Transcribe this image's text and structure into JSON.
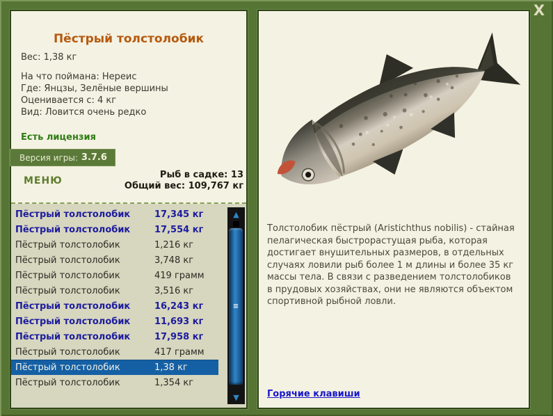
{
  "window": {
    "close_label": "X"
  },
  "fish_card": {
    "title": "Пёстрый толстолобик",
    "weight_line": "Вес: 1,38 кг",
    "bait_line": "На что поймана: Нереис",
    "place_line": "Где: Янцзы, Зелёные вершины",
    "valued_line": "Оценивается с: 4 кг",
    "rarity_line": "Вид: Ловится очень редко",
    "license_label": "Есть лицензия",
    "version_label": "Версия игры:",
    "version_value": "3.7.6"
  },
  "menu": {
    "label": "МЕНЮ"
  },
  "cage": {
    "count_line": "Рыб в садке: 13",
    "total_line": "Общий вес: 109,767 кг",
    "fish": [
      {
        "name": "Пёстрый толстолобик",
        "weight": "17,345 кг",
        "bold": true,
        "selected": false
      },
      {
        "name": "Пёстрый толстолобик",
        "weight": "17,554 кг",
        "bold": true,
        "selected": false
      },
      {
        "name": "Пёстрый толстолобик",
        "weight": "1,216 кг",
        "bold": false,
        "selected": false
      },
      {
        "name": "Пёстрый толстолобик",
        "weight": "3,748 кг",
        "bold": false,
        "selected": false
      },
      {
        "name": "Пёстрый толстолобик",
        "weight": "419 грамм",
        "bold": false,
        "selected": false
      },
      {
        "name": "Пёстрый толстолобик",
        "weight": "3,516 кг",
        "bold": false,
        "selected": false
      },
      {
        "name": "Пёстрый толстолобик",
        "weight": "16,243 кг",
        "bold": true,
        "selected": false
      },
      {
        "name": "Пёстрый толстолобик",
        "weight": "11,693 кг",
        "bold": true,
        "selected": false
      },
      {
        "name": "Пёстрый толстолобик",
        "weight": "17,958 кг",
        "bold": true,
        "selected": false
      },
      {
        "name": "Пёстрый толстолобик",
        "weight": "417 грамм",
        "bold": false,
        "selected": false
      },
      {
        "name": "Пёстрый толстолобик",
        "weight": "1,38 кг",
        "bold": false,
        "selected": true
      },
      {
        "name": "Пёстрый толстолобик",
        "weight": "1,354 кг",
        "bold": false,
        "selected": false
      }
    ]
  },
  "details": {
    "description": "Толстолобик пёстрый (Aristichthus nobilis) - стайная пелагическая быстрорастущая рыба, которая достигает внушительных размеров, в отдельных случаях ловили рыб более 1 м длины и более 35 кг массы тела. В связи с разведением толстолобиков в прудовых хозяйствах, они не являются объектом спортивной рыбной ловли.",
    "hotkeys_link": "Горячие клавиши"
  },
  "icons": {
    "scroll_up": "▲",
    "scroll_down": "▼",
    "grip": "≡"
  },
  "colors": {
    "frame_green": "#567434",
    "panel_cream": "#f4f2e2",
    "list_beige": "#d7d6bf",
    "title_orange": "#b55a10",
    "license_green": "#2f7c15",
    "badge_green": "#5b7a3a",
    "menu_green": "#5e7d2f",
    "bold_row_blue": "#1c1c9e",
    "selected_row_blue": "#1560a4",
    "link_blue": "#1717cc",
    "scrollbar_track": "#131313",
    "scrollbar_thumb_blue": "#2f86c8"
  }
}
